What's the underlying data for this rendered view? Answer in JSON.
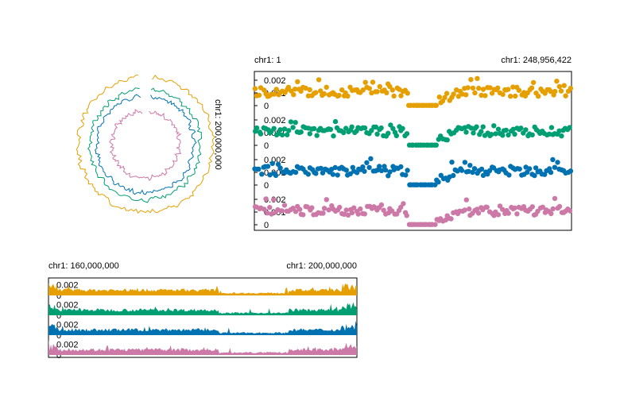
{
  "colors": {
    "track1": "#E69F00",
    "track2": "#009E73",
    "track3": "#0072B2",
    "track4": "#CC79A7",
    "axis": "#000000"
  },
  "chart_data": [
    {
      "type": "line",
      "subtype": "circular",
      "label": "chr1: 200,000,000",
      "tracks": [
        {
          "color": "track1",
          "level": 1.0
        },
        {
          "color": "track2",
          "level": 0.82
        },
        {
          "color": "track3",
          "level": 0.72
        },
        {
          "color": "track4",
          "level": 0.5
        }
      ]
    },
    {
      "type": "scatter",
      "range_start_label": "chr1: 1",
      "range_end_label": "chr1: 248,956,422",
      "x_range": [
        1,
        248956422
      ],
      "ylim": [
        0,
        0.0025
      ],
      "ytick_labels": [
        "0",
        "0.001",
        "0.002"
      ],
      "yticks": [
        0,
        0.001,
        0.002
      ],
      "centromere_gap": [
        121000000,
        143000000
      ],
      "tracks": [
        {
          "color": "track1",
          "baseline": 0.0011
        },
        {
          "color": "track2",
          "baseline": 0.0011
        },
        {
          "color": "track3",
          "baseline": 0.0011
        },
        {
          "color": "track4",
          "baseline": 0.0011
        }
      ]
    },
    {
      "type": "area",
      "range_start_label": "chr1: 160,000,000",
      "range_end_label": "chr1: 200,000,000",
      "x_range": [
        160000000,
        200000000
      ],
      "ylim": [
        0,
        0.003
      ],
      "ytick_labels": [
        "0",
        "0.002"
      ],
      "yticks": [
        0,
        0.002
      ],
      "tracks": [
        {
          "color": "track1"
        },
        {
          "color": "track2"
        },
        {
          "color": "track3"
        },
        {
          "color": "track4"
        }
      ]
    }
  ]
}
